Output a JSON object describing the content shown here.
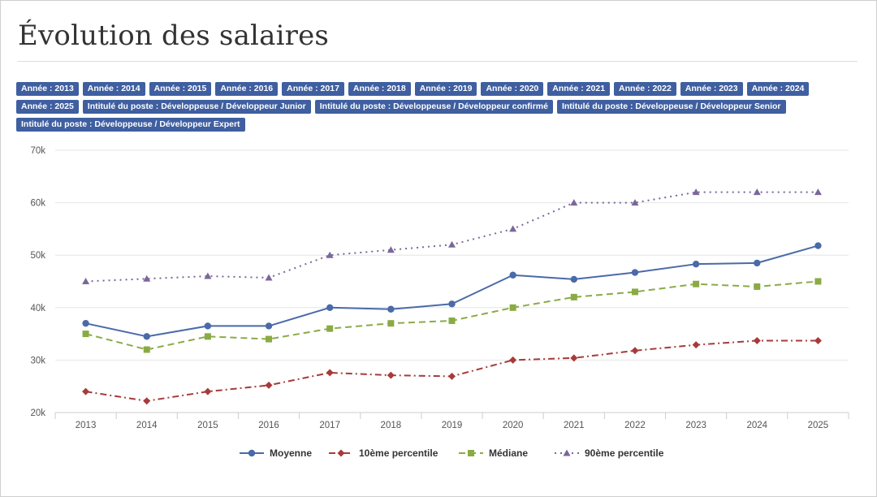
{
  "page": {
    "title": "Évolution des salaires",
    "filters": [
      "Année : 2013",
      "Année : 2014",
      "Année : 2015",
      "Année : 2016",
      "Année : 2017",
      "Année : 2018",
      "Année : 2019",
      "Année : 2020",
      "Année : 2021",
      "Année : 2022",
      "Année : 2023",
      "Année : 2024",
      "Année : 2025",
      "Intitulé du poste : Développeuse / Développeur Junior",
      "Intitulé du poste : Développeuse / Développeur confirmé",
      "Intitulé du poste : Développeuse / Développeur Senior",
      "Intitulé du poste : Développeuse / Développeur Expert"
    ],
    "colors": {
      "tag_bg": "#3f5fa0",
      "moyenne": "#4a6aa8",
      "p10": "#a83a3a",
      "mediane": "#8aab44",
      "p90": "#7a679a"
    }
  },
  "chart_data": {
    "type": "line",
    "title": "",
    "xlabel": "",
    "ylabel": "",
    "categories": [
      "2013",
      "2014",
      "2015",
      "2016",
      "2017",
      "2018",
      "2019",
      "2020",
      "2021",
      "2022",
      "2023",
      "2024",
      "2025"
    ],
    "ylim": [
      20000,
      70000
    ],
    "yticks": [
      20000,
      30000,
      40000,
      50000,
      60000,
      70000
    ],
    "ytick_labels": [
      "20k",
      "30k",
      "40k",
      "50k",
      "60k",
      "70k"
    ],
    "grid": true,
    "legend": "bottom",
    "series": [
      {
        "name": "Moyenne",
        "color": "#4a6aa8",
        "dash": "solid",
        "marker": "circle",
        "values": [
          37000,
          34500,
          36500,
          36500,
          40000,
          39700,
          40700,
          46200,
          45400,
          46700,
          48300,
          48500,
          51800
        ]
      },
      {
        "name": "10ème percentile",
        "color": "#a83a3a",
        "dash": "dashdot",
        "marker": "diamond",
        "values": [
          24000,
          22200,
          24000,
          25200,
          27600,
          27100,
          26900,
          30000,
          30400,
          31800,
          32900,
          33700,
          33700
        ]
      },
      {
        "name": "Médiane",
        "color": "#8aab44",
        "dash": "dash",
        "marker": "square",
        "values": [
          35000,
          32000,
          34500,
          34000,
          36000,
          37000,
          37500,
          40000,
          42000,
          43000,
          44500,
          44000,
          45000
        ]
      },
      {
        "name": "90ème percentile",
        "color": "#7a679a",
        "dash": "dot",
        "marker": "triangle",
        "values": [
          45000,
          45500,
          46000,
          45700,
          50000,
          51000,
          52000,
          55000,
          60000,
          60000,
          62000,
          62000,
          62000
        ]
      }
    ]
  }
}
